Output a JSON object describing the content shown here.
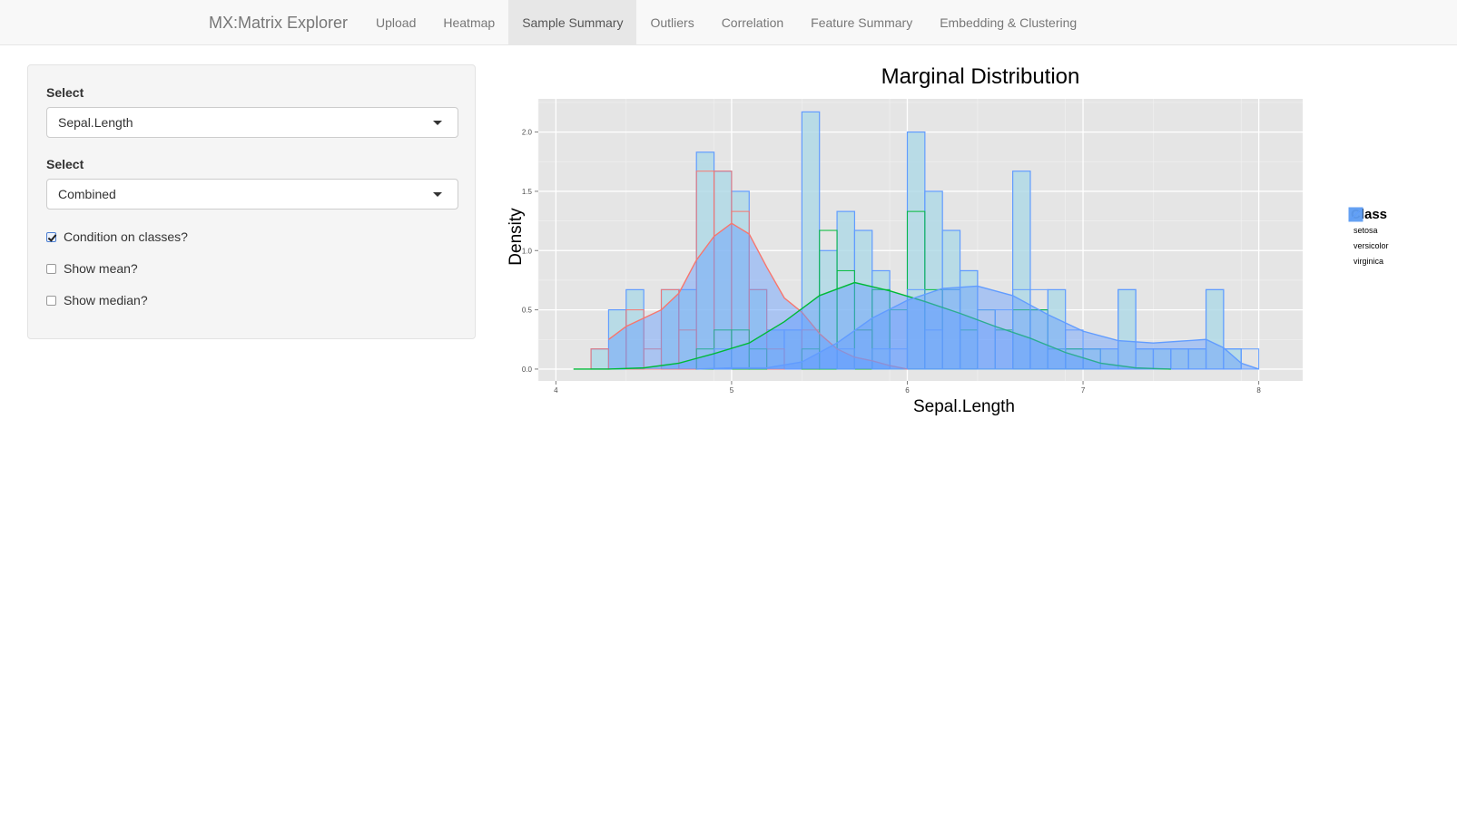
{
  "app": {
    "brand": "MX:Matrix Explorer",
    "tabs": [
      {
        "label": "Upload"
      },
      {
        "label": "Heatmap"
      },
      {
        "label": "Sample Summary",
        "active": true
      },
      {
        "label": "Outliers"
      },
      {
        "label": "Correlation"
      },
      {
        "label": "Feature Summary"
      },
      {
        "label": "Embedding & Clustering"
      }
    ]
  },
  "sidebar": {
    "select1": {
      "label": "Select",
      "value": "Sepal.Length"
    },
    "select2": {
      "label": "Select",
      "value": "Combined"
    },
    "checkboxes": [
      {
        "label": "Condition on classes?",
        "checked": true
      },
      {
        "label": "Show mean?",
        "checked": false
      },
      {
        "label": "Show median?",
        "checked": false
      }
    ]
  },
  "colors": {
    "setosa": "#F8766D",
    "versicolor": "#00BA38",
    "virginica": "#619CFF",
    "panel_bg": "#E5E5E5",
    "histogram_fill": "#ADD8E6"
  },
  "chart_data": {
    "type": "histogram+density",
    "title": "Marginal Distribution",
    "xlabel": "Sepal.Length",
    "ylabel": "Density",
    "xlim": [
      3.9,
      8.25
    ],
    "ylim": [
      -0.1,
      2.28
    ],
    "xticks": [
      4,
      5,
      6,
      7,
      8
    ],
    "yticks": [
      0.0,
      0.5,
      1.0,
      1.5,
      2.0
    ],
    "ytick_labels": [
      "0.0",
      "0.5",
      "1.0",
      "1.5",
      "2.0"
    ],
    "grid": true,
    "legend": {
      "title": "Class",
      "position": "right",
      "entries": [
        "setosa",
        "versicolor",
        "virginica"
      ]
    },
    "histogram_bins": [
      4.2,
      4.3,
      4.4,
      4.5,
      4.6,
      4.7,
      4.8,
      4.9,
      5.0,
      5.1,
      5.2,
      5.3,
      5.4,
      5.5,
      5.6,
      5.7,
      5.8,
      5.9,
      6.0,
      6.1,
      6.2,
      6.3,
      6.4,
      6.5,
      6.6,
      6.7,
      6.8,
      6.9,
      7.0,
      7.1,
      7.2,
      7.3,
      7.4,
      7.5,
      7.6,
      7.7,
      7.8,
      7.9
    ],
    "series": [
      {
        "name": "setosa",
        "hist": [
          0.17,
          0,
          0.5,
          0.17,
          0.67,
          0.33,
          1.67,
          1.67,
          1.33,
          0.67,
          0.17,
          0,
          0.33,
          0,
          0,
          0.33,
          0,
          0,
          0,
          0,
          0,
          0,
          0,
          0,
          0,
          0,
          0,
          0,
          0,
          0,
          0,
          0,
          0,
          0,
          0,
          0,
          0,
          0
        ],
        "density_x": [
          4.3,
          4.4,
          4.5,
          4.6,
          4.7,
          4.8,
          4.9,
          5.0,
          5.1,
          5.2,
          5.3,
          5.4,
          5.5,
          5.6,
          5.7,
          5.8,
          5.9,
          6.0
        ],
        "density_y": [
          0.25,
          0.36,
          0.43,
          0.5,
          0.64,
          0.92,
          1.12,
          1.23,
          1.14,
          0.86,
          0.6,
          0.48,
          0.3,
          0.17,
          0.1,
          0.07,
          0.03,
          0.0
        ]
      },
      {
        "name": "versicolor",
        "hist": [
          0,
          0,
          0,
          0,
          0,
          0,
          0.17,
          0.33,
          0.33,
          0.17,
          0,
          0,
          0.17,
          1.17,
          0.83,
          0.33,
          0.67,
          0.5,
          1.33,
          0.67,
          0.67,
          0.33,
          0.5,
          0.33,
          0.5,
          0.5,
          0.17,
          0.17,
          0.17,
          0,
          0,
          0,
          0,
          0,
          0,
          0,
          0,
          0
        ],
        "density_x": [
          4.1,
          4.3,
          4.5,
          4.7,
          4.9,
          5.1,
          5.3,
          5.5,
          5.7,
          5.9,
          6.1,
          6.3,
          6.5,
          6.7,
          6.9,
          7.1,
          7.3,
          7.5
        ],
        "density_y": [
          0.0,
          0.0,
          0.01,
          0.05,
          0.13,
          0.22,
          0.4,
          0.62,
          0.73,
          0.66,
          0.57,
          0.47,
          0.36,
          0.26,
          0.14,
          0.05,
          0.01,
          0.0
        ]
      },
      {
        "name": "virginica",
        "hist": [
          0,
          0,
          0,
          0,
          0,
          0,
          0,
          0.17,
          0,
          0,
          0,
          0,
          0,
          0,
          0.17,
          0,
          0.17,
          0.17,
          0.67,
          0.33,
          0.67,
          0.83,
          0.5,
          0.5,
          0.67,
          0.67,
          0.17,
          0.33,
          0.17,
          0,
          0.67,
          0.17,
          0.17,
          0.17,
          0.17,
          0.67,
          0.17,
          0.17
        ],
        "density_x": [
          4.8,
          5.0,
          5.2,
          5.4,
          5.6,
          5.8,
          6.0,
          6.2,
          6.4,
          6.6,
          6.8,
          7.0,
          7.2,
          7.4,
          7.6,
          7.7,
          7.8,
          7.9,
          8.0
        ],
        "density_y": [
          0.0,
          0.01,
          0.01,
          0.06,
          0.22,
          0.43,
          0.58,
          0.68,
          0.7,
          0.62,
          0.46,
          0.32,
          0.24,
          0.22,
          0.24,
          0.25,
          0.18,
          0.05,
          0.0
        ]
      }
    ],
    "combined_hist": [
      0.17,
      0.5,
      0.67,
      0.67,
      0.67,
      1.83,
      1.67,
      1.5,
      0.67,
      0.33,
      0.33,
      2.17,
      1.0,
      1.33,
      1.17,
      0.83,
      2.0,
      1.5,
      1.17,
      0.83,
      1.67,
      0.5,
      0.67,
      0.17,
      0.17,
      0.17,
      0.67,
      0.17,
      0.17,
      0.17,
      0.17,
      0.67,
      0.17
    ],
    "combined_bins": [
      4.2,
      4.3,
      4.4,
      4.6,
      4.7,
      4.8,
      4.9,
      5.0,
      5.1,
      5.2,
      5.3,
      5.4,
      5.5,
      5.6,
      5.7,
      5.8,
      6.0,
      6.1,
      6.2,
      6.3,
      6.6,
      6.7,
      6.8,
      6.9,
      7.0,
      7.1,
      7.2,
      7.3,
      7.4,
      7.5,
      7.6,
      7.7,
      7.8
    ]
  }
}
